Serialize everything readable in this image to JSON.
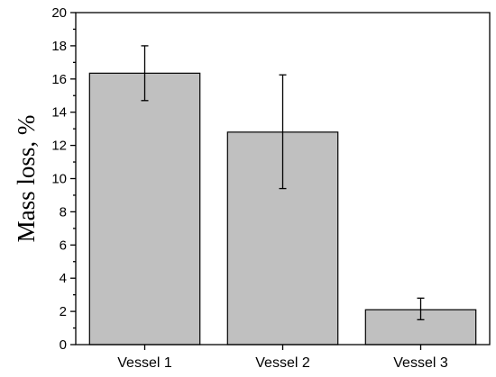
{
  "chart_data": {
    "type": "bar",
    "title": "",
    "xlabel": "",
    "ylabel": "Mass loss, %",
    "ylim": [
      0,
      20
    ],
    "yticks": [
      0,
      2,
      4,
      6,
      8,
      10,
      12,
      14,
      16,
      18,
      20
    ],
    "categories": [
      "Vessel 1",
      "Vessel 2",
      "Vessel 3"
    ],
    "values": [
      16.35,
      12.8,
      2.1
    ],
    "error_low": [
      14.7,
      9.4,
      1.5
    ],
    "error_high": [
      18.0,
      16.25,
      2.8
    ],
    "bar_color": "#c0c0c0",
    "grid": false,
    "legend": "none"
  }
}
